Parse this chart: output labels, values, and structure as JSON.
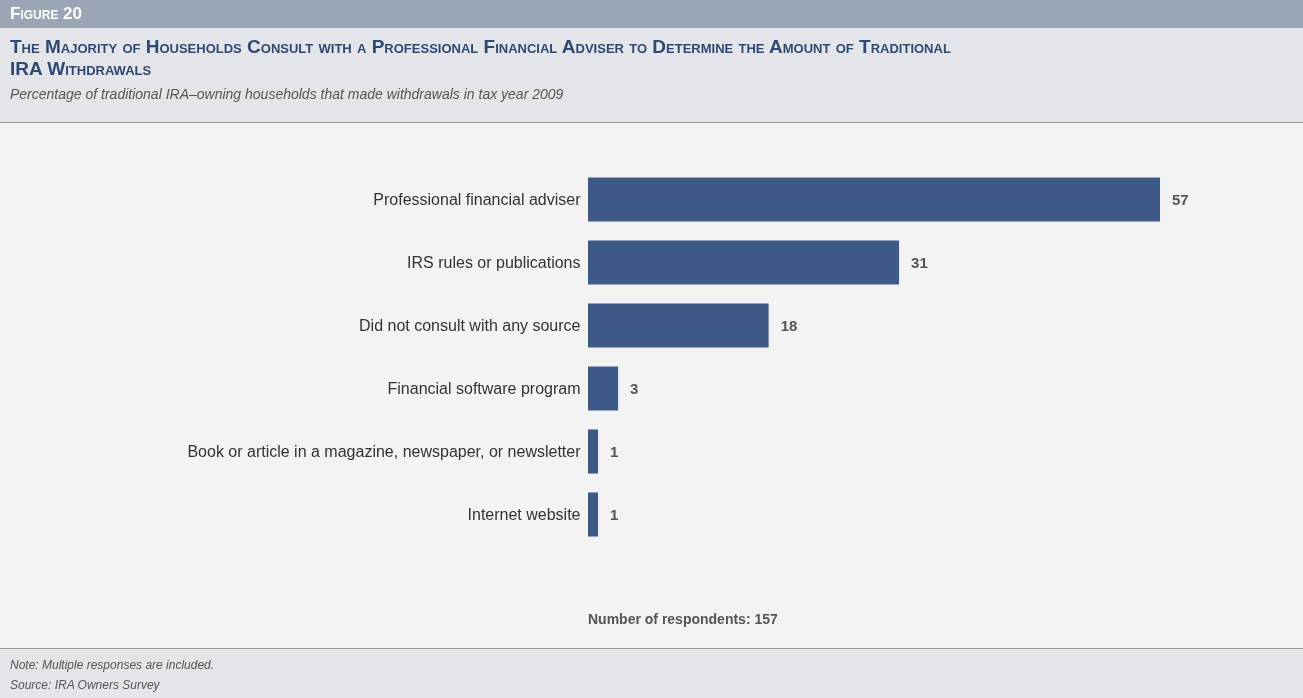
{
  "chart_data": {
    "type": "bar",
    "orientation": "horizontal",
    "title": "The Majority of Households Consult with a Professional Financial Adviser to Determine the Amount of Traditional IRA Withdrawals",
    "subtitle": "Percentage of traditional IRA–owning households that made withdrawals in tax year 2009",
    "categories": [
      "Professional financial adviser",
      "IRS rules or publications",
      "Did not consult with any source",
      "Financial software program",
      "Book or article in a magazine, newspaper, or newsletter",
      "Internet website"
    ],
    "values": [
      57,
      31,
      18,
      3,
      1,
      1
    ],
    "color": "#3d5a87",
    "data_labels": true,
    "tick_labels": "y",
    "annotations": [
      "Figure 20",
      "Number of respondents: 157",
      "Note: Multiple responses are included.",
      "Source: IRA Owners Survey"
    ]
  }
}
